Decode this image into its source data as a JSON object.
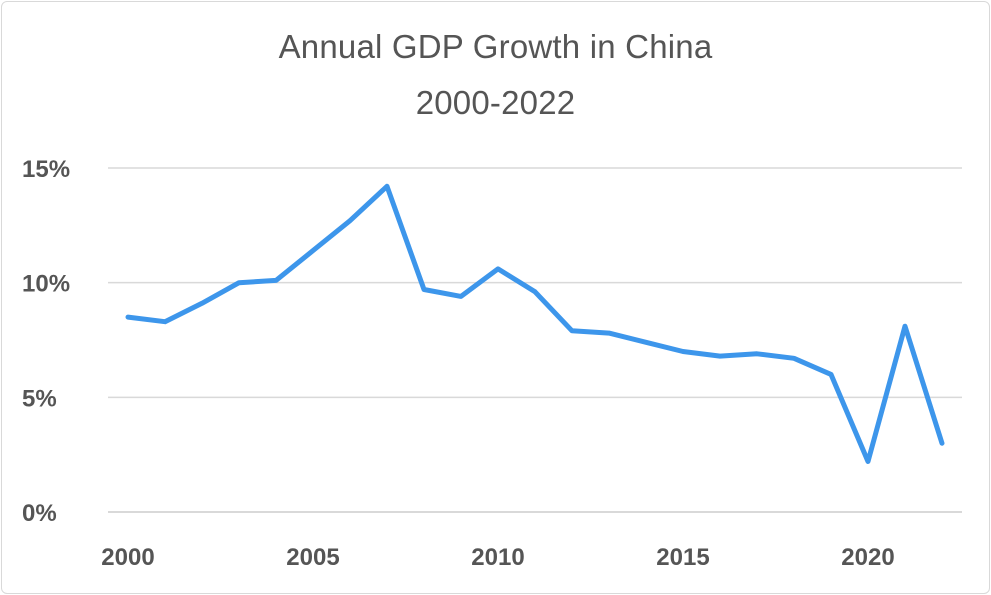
{
  "chart_data": {
    "type": "line",
    "title": [
      "Annual GDP Growth in China",
      "2000-2022"
    ],
    "xlabel": "",
    "ylabel": "",
    "x": [
      2000,
      2001,
      2002,
      2003,
      2004,
      2005,
      2006,
      2007,
      2008,
      2009,
      2010,
      2011,
      2012,
      2013,
      2014,
      2015,
      2016,
      2017,
      2018,
      2019,
      2020,
      2021,
      2022
    ],
    "series": [
      {
        "values": [
          8.5,
          8.3,
          9.1,
          10.0,
          10.1,
          11.4,
          12.7,
          14.2,
          9.7,
          9.4,
          10.6,
          9.6,
          7.9,
          7.8,
          7.4,
          7.0,
          6.8,
          6.9,
          6.7,
          6.0,
          2.2,
          8.1,
          3.0
        ],
        "color": "#3d96eb"
      }
    ],
    "xlim": [
      2000,
      2022
    ],
    "ylim": [
      0,
      15
    ],
    "xticks": [
      "2000",
      "2005",
      "2010",
      "2015",
      "2020"
    ],
    "yticks": [
      "0%",
      "5%",
      "10%",
      "15%"
    ],
    "grid": "horizontal",
    "gridColor": "#d9d9d9"
  }
}
